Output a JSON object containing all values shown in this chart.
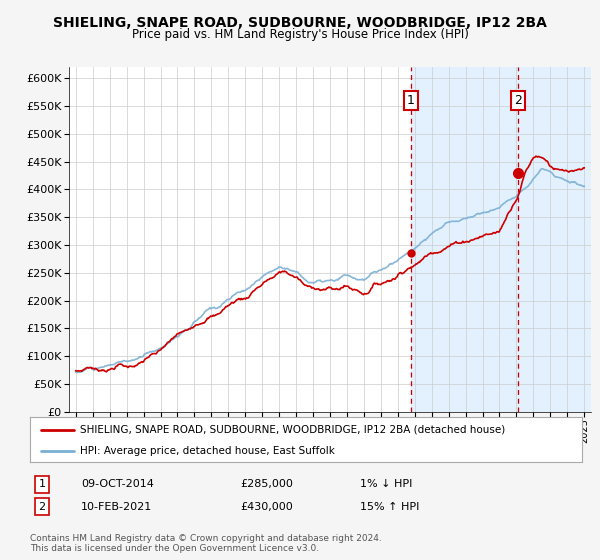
{
  "title": "SHIELING, SNAPE ROAD, SUDBOURNE, WOODBRIDGE, IP12 2BA",
  "subtitle": "Price paid vs. HM Land Registry's House Price Index (HPI)",
  "ylim": [
    0,
    620000
  ],
  "yticks": [
    0,
    50000,
    100000,
    150000,
    200000,
    250000,
    300000,
    350000,
    400000,
    450000,
    500000,
    550000,
    600000
  ],
  "xlim_start": 1994.6,
  "xlim_end": 2025.4,
  "background_color": "#f5f5f5",
  "plot_bg_color": "#ffffff",
  "grid_color": "#cccccc",
  "hpi_color": "#7bafd4",
  "price_color": "#cc0000",
  "shade_color": "#ddeeff",
  "sale1_date": 2014.77,
  "sale1_price": 285000,
  "sale1_label": "1",
  "sale2_date": 2021.1,
  "sale2_price": 430000,
  "sale2_label": "2",
  "legend_line1": "SHIELING, SNAPE ROAD, SUDBOURNE, WOODBRIDGE, IP12 2BA (detached house)",
  "legend_line2": "HPI: Average price, detached house, East Suffolk",
  "note1_label": "1",
  "note1_date": "09-OCT-2014",
  "note1_price": "£285,000",
  "note1_pct": "1% ↓ HPI",
  "note2_label": "2",
  "note2_date": "10-FEB-2021",
  "note2_price": "£430,000",
  "note2_pct": "15% ↑ HPI",
  "footer": "Contains HM Land Registry data © Crown copyright and database right 2024.\nThis data is licensed under the Open Government Licence v3.0."
}
